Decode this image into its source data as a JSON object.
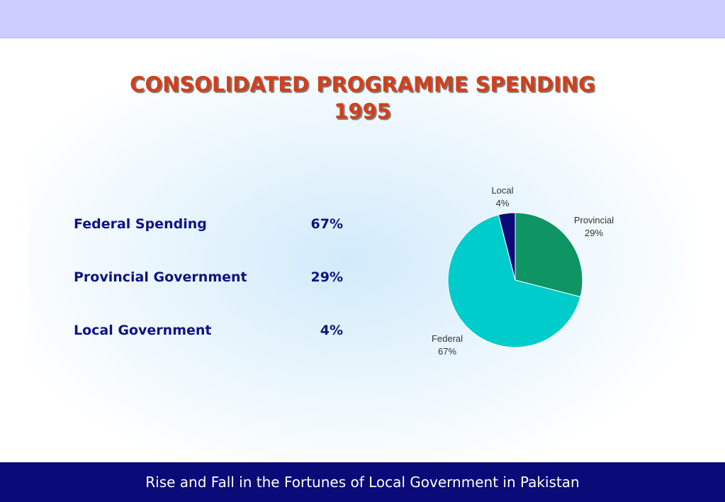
{
  "title": {
    "line1": "CONSOLIDATED PROGRAMME SPENDING",
    "line2": "1995"
  },
  "table": [
    {
      "label": "Federal Spending",
      "value": "67%"
    },
    {
      "label": "Provincial Government",
      "value": "29%"
    },
    {
      "label": "Local Government",
      "value": "4%"
    }
  ],
  "chart_data": {
    "type": "pie",
    "title": "",
    "slices": [
      {
        "label": "Provincial",
        "value": 29,
        "value_label": "29%",
        "color": "#0f9463"
      },
      {
        "label": "Federal",
        "value": 67,
        "value_label": "67%",
        "color": "#00cccc"
      },
      {
        "label": "Local",
        "value": 4,
        "value_label": "4%",
        "color": "#0a0a78"
      }
    ],
    "start_angle_deg": 0,
    "direction": "clockwise"
  },
  "footer": {
    "text": "Rise and Fall in the Fortunes of Local Government in Pakistan"
  },
  "colors": {
    "title": "#d0401b",
    "table_text": "#0d1382",
    "top_band": "#ccccff",
    "footer_bg": "#0a0a78"
  }
}
